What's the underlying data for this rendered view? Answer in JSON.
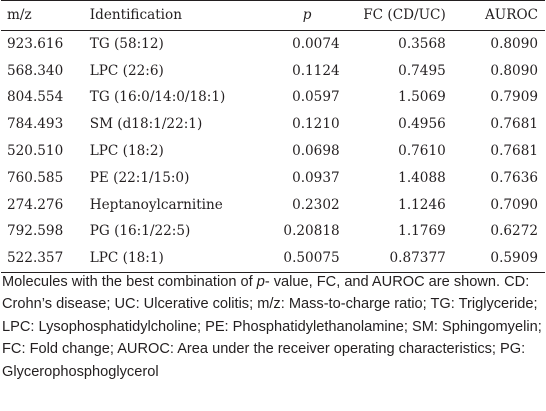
{
  "table": {
    "headers": {
      "mz": "m/z",
      "identification": "Identification",
      "p": "p",
      "fc": "FC (CD/UC)",
      "auroc": "AUROC"
    },
    "rows": [
      {
        "mz": "923.616",
        "identification": "TG (58:12)",
        "p": "0.0074",
        "fc": "0.3568",
        "auroc": "0.8090"
      },
      {
        "mz": "568.340",
        "identification": "LPC (22:6)",
        "p": "0.1124",
        "fc": "0.7495",
        "auroc": "0.8090"
      },
      {
        "mz": "804.554",
        "identification": "TG (16:0/14:0/18:1)",
        "p": "0.0597",
        "fc": "1.5069",
        "auroc": "0.7909"
      },
      {
        "mz": "784.493",
        "identification": "SM (d18:1/22:1)",
        "p": "0.1210",
        "fc": "0.4956",
        "auroc": "0.7681"
      },
      {
        "mz": "520.510",
        "identification": "LPC (18:2)",
        "p": "0.0698",
        "fc": "0.7610",
        "auroc": "0.7681"
      },
      {
        "mz": "760.585",
        "identification": "PE (22:1/15:0)",
        "p": "0.0937",
        "fc": "1.4088",
        "auroc": "0.7636"
      },
      {
        "mz": "274.276",
        "identification": "Heptanoylcarnitine",
        "p": "0.2302",
        "fc": "1.1246",
        "auroc": "0.7090"
      },
      {
        "mz": "792.598",
        "identification": "PG (16:1/22:5)",
        "p": "0.20818",
        "fc": "1.1769",
        "auroc": "0.6272"
      },
      {
        "mz": "522.357",
        "identification": "LPC (18:1)",
        "p": "0.50075",
        "fc": "0.87377",
        "auroc": "0.5909"
      }
    ]
  },
  "footnote": {
    "lead": "Molecules with the best combination of ",
    "italic": "p",
    "rest": "- value, FC, and AUROC are shown. CD: Crohn’s disease; UC: Ulcerative colitis; m/z: Mass-to-charge ratio; TG: Triglyceride; LPC: Lysophosphatidylcholine; PE: Phosphatidylethanolamine; SM: Sphingomyelin; FC: Fold change; AUROC: Area under the receiver operating characteristics; PG: Glycerophosphoglycerol"
  }
}
